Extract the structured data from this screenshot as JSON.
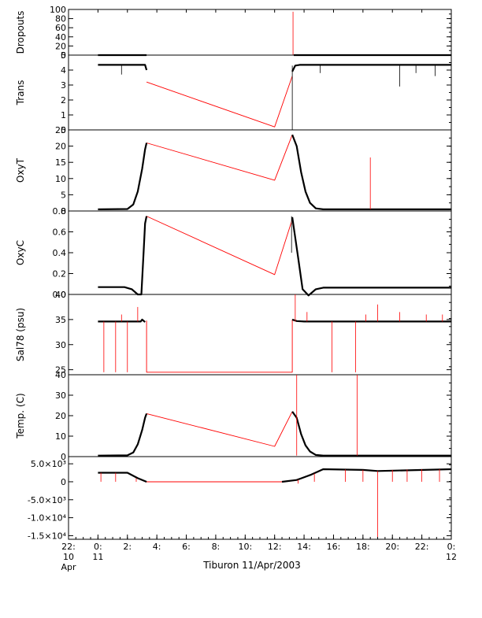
{
  "chart_data": {
    "type": "line",
    "caption": "Tiburon 11/Apr/2003",
    "x_axis": {
      "unit": "hours",
      "range": [
        -2,
        24
      ],
      "tick_labels": [
        {
          "x": -2,
          "line1": "22:",
          "line2": "10",
          "line3": "Apr"
        },
        {
          "x": 0,
          "line1": "0:",
          "line2": "11",
          "line3": ""
        },
        {
          "x": 2,
          "line1": "2:",
          "line2": "",
          "line3": ""
        },
        {
          "x": 4,
          "line1": "4:",
          "line2": "",
          "line3": ""
        },
        {
          "x": 6,
          "line1": "6:",
          "line2": "",
          "line3": ""
        },
        {
          "x": 8,
          "line1": "8:",
          "line2": "",
          "line3": ""
        },
        {
          "x": 10,
          "line1": "10:",
          "line2": "",
          "line3": ""
        },
        {
          "x": 12,
          "line1": "12:",
          "line2": "",
          "line3": ""
        },
        {
          "x": 14,
          "line1": "14:",
          "line2": "",
          "line3": ""
        },
        {
          "x": 16,
          "line1": "16:",
          "line2": "",
          "line3": ""
        },
        {
          "x": 18,
          "line1": "18:",
          "line2": "",
          "line3": ""
        },
        {
          "x": 20,
          "line1": "20:",
          "line2": "",
          "line3": ""
        },
        {
          "x": 22,
          "line1": "22:",
          "line2": "",
          "line3": ""
        },
        {
          "x": 24,
          "line1": "0:",
          "line2": "12",
          "line3": ""
        }
      ]
    },
    "colors": {
      "data": "#000000",
      "flagged": "#ff0000",
      "axes": "#000000"
    },
    "panels": [
      {
        "ylabel": "Dropouts",
        "ylim": [
          0,
          100
        ],
        "yticks": [
          {
            "v": 0,
            "label": "0"
          },
          {
            "v": 20,
            "label": "20"
          },
          {
            "v": 40,
            "label": "40"
          },
          {
            "v": 60,
            "label": "60"
          },
          {
            "v": 80,
            "label": "80"
          },
          {
            "v": 100,
            "label": "100"
          }
        ],
        "series": [
          {
            "color": "flagged",
            "points": [
              [
                3.3,
                0
              ],
              [
                13.2,
                0
              ]
            ]
          },
          {
            "color": "data",
            "points": [
              [
                0,
                0
              ],
              [
                3.3,
                0
              ]
            ]
          },
          {
            "color": "data",
            "points": [
              [
                13.3,
                0
              ],
              [
                24,
                0
              ]
            ]
          }
        ],
        "spikes": [
          {
            "x": 13.25,
            "y0": 0,
            "y1": 95,
            "color": "flagged"
          }
        ]
      },
      {
        "ylabel": "Trans",
        "ylim": [
          0,
          5
        ],
        "yticks": [
          {
            "v": 0,
            "label": "0"
          },
          {
            "v": 1,
            "label": "1"
          },
          {
            "v": 2,
            "label": "2"
          },
          {
            "v": 3,
            "label": "3"
          },
          {
            "v": 4,
            "label": "4"
          },
          {
            "v": 5,
            "label": "5"
          }
        ],
        "series": [
          {
            "color": "flagged",
            "points": [
              [
                3.3,
                3.2
              ],
              [
                12.0,
                0.2
              ],
              [
                13.2,
                3.6
              ]
            ]
          },
          {
            "color": "data",
            "points": [
              [
                0,
                4.35
              ],
              [
                3.2,
                4.35
              ],
              [
                3.3,
                4.0
              ]
            ]
          },
          {
            "color": "data",
            "points": [
              [
                13.2,
                3.9
              ],
              [
                13.4,
                4.3
              ],
              [
                13.7,
                4.35
              ],
              [
                24,
                4.35
              ]
            ]
          }
        ],
        "spikes": [
          {
            "x": 1.6,
            "y0": 4.35,
            "y1": 3.7,
            "color": "data"
          },
          {
            "x": 13.2,
            "y0": 4.3,
            "y1": 0.0,
            "color": "data"
          },
          {
            "x": 15.1,
            "y0": 4.35,
            "y1": 3.8,
            "color": "data"
          },
          {
            "x": 20.5,
            "y0": 4.35,
            "y1": 2.9,
            "color": "data"
          },
          {
            "x": 21.6,
            "y0": 4.35,
            "y1": 3.8,
            "color": "data"
          },
          {
            "x": 22.9,
            "y0": 4.35,
            "y1": 3.6,
            "color": "data"
          }
        ]
      },
      {
        "ylabel": "OxyT",
        "ylim": [
          0,
          25
        ],
        "yticks": [
          {
            "v": 0,
            "label": "0"
          },
          {
            "v": 5,
            "label": "5"
          },
          {
            "v": 10,
            "label": "10"
          },
          {
            "v": 15,
            "label": "15"
          },
          {
            "v": 20,
            "label": "20"
          },
          {
            "v": 25,
            "label": "25"
          }
        ],
        "series": [
          {
            "color": "flagged",
            "points": [
              [
                3.3,
                21.0
              ],
              [
                12.0,
                9.5
              ],
              [
                13.2,
                23.5
              ]
            ]
          },
          {
            "color": "data",
            "points": [
              [
                0,
                0.5
              ],
              [
                2.0,
                0.6
              ],
              [
                2.4,
                2.0
              ],
              [
                2.7,
                6.0
              ],
              [
                3.0,
                13.0
              ],
              [
                3.2,
                19.0
              ],
              [
                3.3,
                21.0
              ]
            ]
          },
          {
            "color": "data",
            "points": [
              [
                13.2,
                23.5
              ],
              [
                13.5,
                20.0
              ],
              [
                13.8,
                12.0
              ],
              [
                14.1,
                6.0
              ],
              [
                14.4,
                2.5
              ],
              [
                14.8,
                0.8
              ],
              [
                15.3,
                0.5
              ],
              [
                24,
                0.5
              ]
            ]
          }
        ],
        "spikes": [
          {
            "x": 18.5,
            "y0": 0.5,
            "y1": 16.5,
            "color": "flagged"
          }
        ]
      },
      {
        "ylabel": "OxyC",
        "ylim": [
          0,
          0.8
        ],
        "yticks": [
          {
            "v": 0,
            "label": "0.0"
          },
          {
            "v": 0.2,
            "label": "0.2"
          },
          {
            "v": 0.4,
            "label": "0.4"
          },
          {
            "v": 0.6,
            "label": "0.6"
          },
          {
            "v": 0.8,
            "label": "0.8"
          }
        ],
        "series": [
          {
            "color": "flagged",
            "points": [
              [
                3.3,
                0.75
              ],
              [
                12.0,
                0.19
              ],
              [
                13.2,
                0.72
              ]
            ]
          },
          {
            "color": "data",
            "points": [
              [
                0,
                0.07
              ],
              [
                1.8,
                0.07
              ],
              [
                2.3,
                0.05
              ],
              [
                2.7,
                0.0
              ],
              [
                2.95,
                0.0
              ],
              [
                3.1,
                0.4
              ],
              [
                3.2,
                0.68
              ],
              [
                3.3,
                0.75
              ]
            ]
          },
          {
            "color": "data",
            "points": [
              [
                13.2,
                0.74
              ],
              [
                13.6,
                0.35
              ],
              [
                13.9,
                0.05
              ],
              [
                14.3,
                -0.01
              ],
              [
                14.8,
                0.05
              ],
              [
                15.3,
                0.065
              ],
              [
                24,
                0.065
              ]
            ]
          }
        ],
        "spikes": [
          {
            "x": 13.15,
            "y0": 0.75,
            "y1": 0.4,
            "color": "data"
          }
        ]
      },
      {
        "ylabel": "Sal78 (psu)",
        "ylim": [
          24,
          40
        ],
        "yticks": [
          {
            "v": 25,
            "label": "25"
          },
          {
            "v": 30,
            "label": "30"
          },
          {
            "v": 35,
            "label": "35"
          },
          {
            "v": 40,
            "label": "40"
          }
        ],
        "series": [
          {
            "color": "flagged",
            "points": [
              [
                3.3,
                34.8
              ],
              [
                3.3,
                24.5
              ],
              [
                13.2,
                24.5
              ],
              [
                13.2,
                35.0
              ]
            ]
          },
          {
            "color": "data",
            "points": [
              [
                0,
                34.6
              ],
              [
                2.9,
                34.6
              ],
              [
                3.0,
                35.0
              ],
              [
                3.2,
                34.5
              ]
            ]
          },
          {
            "color": "data",
            "points": [
              [
                13.2,
                35.0
              ],
              [
                13.5,
                34.7
              ],
              [
                14.0,
                34.6
              ],
              [
                24,
                34.6
              ]
            ]
          }
        ],
        "spikes": [
          {
            "x": 0.4,
            "y0": 34.6,
            "y1": 24.5,
            "color": "flagged"
          },
          {
            "x": 1.2,
            "y0": 34.6,
            "y1": 24.5,
            "color": "flagged"
          },
          {
            "x": 1.6,
            "y0": 34.6,
            "y1": 36.0,
            "color": "flagged"
          },
          {
            "x": 2.0,
            "y0": 34.6,
            "y1": 24.5,
            "color": "flagged"
          },
          {
            "x": 2.7,
            "y0": 34.6,
            "y1": 37.5,
            "color": "flagged"
          },
          {
            "x": 13.4,
            "y0": 34.6,
            "y1": 40.0,
            "color": "flagged"
          },
          {
            "x": 14.2,
            "y0": 34.6,
            "y1": 36.5,
            "color": "flagged"
          },
          {
            "x": 15.9,
            "y0": 34.6,
            "y1": 24.5,
            "color": "flagged"
          },
          {
            "x": 17.5,
            "y0": 34.6,
            "y1": 24.5,
            "color": "flagged"
          },
          {
            "x": 18.2,
            "y0": 34.6,
            "y1": 36.0,
            "color": "flagged"
          },
          {
            "x": 19.0,
            "y0": 34.6,
            "y1": 38.0,
            "color": "flagged"
          },
          {
            "x": 20.5,
            "y0": 34.6,
            "y1": 36.5,
            "color": "flagged"
          },
          {
            "x": 22.3,
            "y0": 34.6,
            "y1": 36.0,
            "color": "flagged"
          },
          {
            "x": 23.4,
            "y0": 34.6,
            "y1": 36.0,
            "color": "flagged"
          }
        ]
      },
      {
        "ylabel": "Temp. (C)",
        "ylim": [
          0,
          40
        ],
        "yticks": [
          {
            "v": 0,
            "label": "0"
          },
          {
            "v": 10,
            "label": "10"
          },
          {
            "v": 20,
            "label": "20"
          },
          {
            "v": 30,
            "label": "30"
          },
          {
            "v": 40,
            "label": "40"
          }
        ],
        "series": [
          {
            "color": "flagged",
            "points": [
              [
                3.3,
                21.0
              ],
              [
                12.0,
                5.0
              ],
              [
                13.2,
                22.0
              ]
            ]
          },
          {
            "color": "data",
            "points": [
              [
                0,
                0.5
              ],
              [
                2.0,
                0.6
              ],
              [
                2.4,
                2.0
              ],
              [
                2.7,
                6.0
              ],
              [
                3.0,
                13.0
              ],
              [
                3.2,
                19.0
              ],
              [
                3.3,
                21.0
              ]
            ]
          },
          {
            "color": "data",
            "points": [
              [
                13.2,
                22.0
              ],
              [
                13.5,
                19.0
              ],
              [
                13.8,
                11.0
              ],
              [
                14.1,
                5.5
              ],
              [
                14.4,
                2.5
              ],
              [
                14.8,
                0.8
              ],
              [
                15.3,
                0.5
              ],
              [
                24,
                0.5
              ]
            ]
          }
        ],
        "spikes": [
          {
            "x": 13.5,
            "y0": 0.5,
            "y1": 40.0,
            "color": "flagged"
          },
          {
            "x": 17.6,
            "y0": 0.5,
            "y1": 40.0,
            "color": "flagged"
          }
        ]
      },
      {
        "ylabel": "",
        "ylim": [
          -16000,
          7000
        ],
        "yticks": [
          {
            "v": 5000,
            "label": "5.0×10³"
          },
          {
            "v": 0,
            "label": "0"
          },
          {
            "v": -5000,
            "label": "-5.0×10³"
          },
          {
            "v": -10000,
            "label": "-1.0×10⁴"
          },
          {
            "v": -15000,
            "label": "-1.5×10⁴"
          }
        ],
        "series": [
          {
            "color": "flagged",
            "points": [
              [
                3.3,
                0
              ],
              [
                12.5,
                0
              ]
            ]
          },
          {
            "color": "data",
            "points": [
              [
                0,
                2500
              ],
              [
                2.0,
                2500
              ],
              [
                2.7,
                1000
              ],
              [
                3.3,
                0
              ]
            ]
          },
          {
            "color": "data",
            "points": [
              [
                12.5,
                0
              ],
              [
                13.5,
                500
              ],
              [
                14.5,
                2000
              ],
              [
                15.3,
                3500
              ],
              [
                18.0,
                3300
              ],
              [
                19.0,
                3000
              ],
              [
                24,
                3500
              ]
            ]
          }
        ],
        "spikes": [
          {
            "x": 0.2,
            "y0": 2500,
            "y1": 0,
            "color": "flagged"
          },
          {
            "x": 1.2,
            "y0": 2500,
            "y1": 0,
            "color": "flagged"
          },
          {
            "x": 2.6,
            "y0": 1000,
            "y1": 0,
            "color": "flagged"
          },
          {
            "x": 13.6,
            "y0": 600,
            "y1": -500,
            "color": "flagged"
          },
          {
            "x": 14.7,
            "y0": 2300,
            "y1": 0,
            "color": "flagged"
          },
          {
            "x": 16.8,
            "y0": 3400,
            "y1": 0,
            "color": "flagged"
          },
          {
            "x": 18.0,
            "y0": 3300,
            "y1": 0,
            "color": "flagged"
          },
          {
            "x": 19.0,
            "y0": 3000,
            "y1": -15800,
            "color": "flagged"
          },
          {
            "x": 20.0,
            "y0": 3300,
            "y1": 0,
            "color": "flagged"
          },
          {
            "x": 21.0,
            "y0": 3400,
            "y1": 0,
            "color": "flagged"
          },
          {
            "x": 22.0,
            "y0": 3500,
            "y1": 0,
            "color": "flagged"
          },
          {
            "x": 23.2,
            "y0": 3500,
            "y1": 0,
            "color": "flagged"
          }
        ]
      }
    ]
  }
}
